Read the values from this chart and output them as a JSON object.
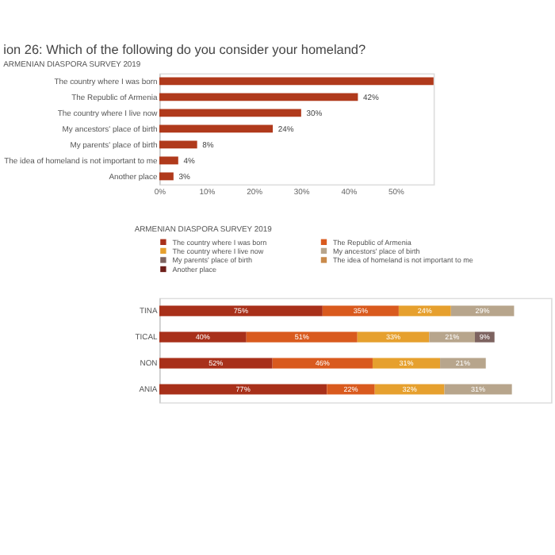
{
  "chart_data": [
    {
      "type": "bar",
      "orientation": "horizontal",
      "title": "ion 26: Which of the following do you consider your homeland?",
      "subtitle": "ARMENIAN  DIASPORA SURVEY 2019",
      "categories": [
        "The country where I was born",
        "The Republic of Armenia",
        "The country where I live now",
        "My ancestors' place of birth",
        "My parents' place of birth",
        "The idea of homeland is not important to me",
        "Another place"
      ],
      "values": [
        58,
        42,
        30,
        24,
        8,
        4,
        3
      ],
      "value_labels": [
        null,
        "42%",
        "30%",
        "24%",
        "8%",
        "4%",
        "3%"
      ],
      "color": "#b03a1c",
      "xlim": [
        0,
        58
      ],
      "xticks": [
        {
          "value": 0,
          "label": "0%"
        },
        {
          "value": 10,
          "label": "10%"
        },
        {
          "value": 20,
          "label": "20%"
        },
        {
          "value": 30,
          "label": "30%"
        },
        {
          "value": 40,
          "label": "40%"
        },
        {
          "value": 50,
          "label": "50%"
        }
      ],
      "grid": false
    },
    {
      "type": "bar",
      "orientation": "horizontal",
      "stacked": true,
      "relative": false,
      "subtitle": "ARMENIAN DIASPORA SURVEY 2019",
      "categories": [
        "TINA",
        "TICAL",
        "NON",
        "ANIA"
      ],
      "series": [
        {
          "name": "The country where I was born",
          "color": "#a8301a",
          "values": [
            75,
            40,
            52,
            77
          ],
          "value_labels": [
            "75%",
            "40%",
            "52%",
            "77%"
          ]
        },
        {
          "name": "The Republic of Armenia",
          "color": "#d95a1e",
          "values": [
            35,
            51,
            46,
            22
          ],
          "value_labels": [
            "35%",
            "51%",
            "46%",
            "22%"
          ]
        },
        {
          "name": "The country where I live now",
          "color": "#e6a02e",
          "values": [
            24,
            33,
            31,
            32
          ],
          "value_labels": [
            "24%",
            "33%",
            "31%",
            "32%"
          ]
        },
        {
          "name": "My ancestors' place of birth",
          "color": "#b7a58c",
          "values": [
            29,
            21,
            21,
            31
          ],
          "value_labels": [
            "29%",
            "21%",
            "21%",
            "31%"
          ]
        },
        {
          "name": "My parents' place of birth",
          "color": "#7d6360",
          "values": [
            null,
            9,
            null,
            null
          ],
          "value_labels": [
            null,
            "9%",
            null,
            null
          ]
        },
        {
          "name": "The idea of homeland is not important to me",
          "color": "#c98a4a",
          "values": [
            null,
            null,
            null,
            null
          ],
          "value_labels": [
            null,
            null,
            null,
            null
          ]
        },
        {
          "name": "Another place",
          "color": "#6e1f1a",
          "values": [
            null,
            null,
            null,
            null
          ],
          "value_labels": [
            null,
            null,
            null,
            null
          ]
        }
      ],
      "legend": "top"
    }
  ]
}
